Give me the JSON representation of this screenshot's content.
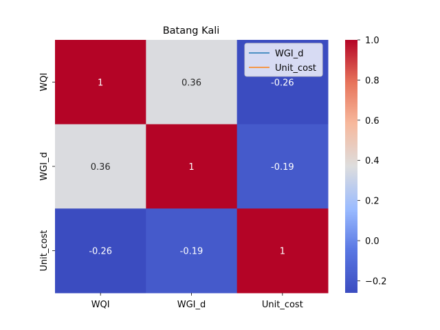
{
  "chart_data": {
    "type": "heatmap",
    "title": "Batang Kali",
    "xlabel": "",
    "ylabel": "",
    "x_categories": [
      "WQI",
      "WGI_d",
      "Unit_cost"
    ],
    "y_categories": [
      "WQI",
      "WGI_d",
      "Unit_cost"
    ],
    "values": [
      [
        1,
        0.36,
        -0.26
      ],
      [
        0.36,
        1,
        -0.19
      ],
      [
        -0.26,
        -0.19,
        1
      ]
    ],
    "value_labels": [
      [
        "1",
        "0.36",
        "-0.26"
      ],
      [
        "0.36",
        "1",
        "-0.19"
      ],
      [
        "-0.26",
        "-0.19",
        "1"
      ]
    ],
    "colormap": "coolwarm",
    "vmin": -0.26,
    "vmax": 1.0,
    "colorbar_ticks": [
      1.0,
      0.8,
      0.6,
      0.4,
      0.2,
      0.0,
      -0.2
    ],
    "colorbar_tick_labels": [
      "1.0",
      "0.8",
      "0.6",
      "0.4",
      "0.2",
      "0.0",
      "−0.2"
    ],
    "legend": {
      "placement": "top-right",
      "entries": [
        {
          "name": "WGI_d",
          "color": "#1f77b4"
        },
        {
          "name": "Unit_cost",
          "color": "#ff7f0e"
        }
      ]
    }
  }
}
